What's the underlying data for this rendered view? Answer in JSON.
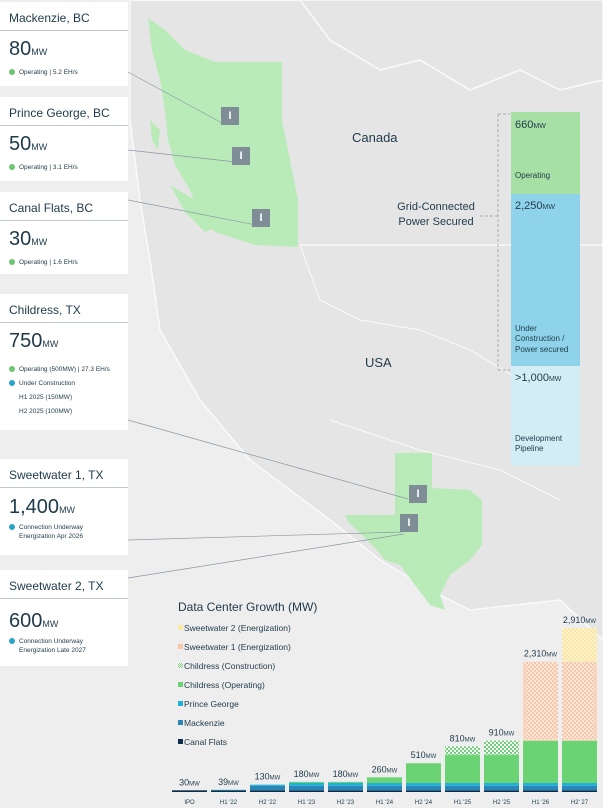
{
  "sites": [
    {
      "name": "Mackenzie, BC",
      "value": "80",
      "unit": "MW",
      "notes": [
        {
          "text": "Operating | 5.2 EH/s",
          "dot": "#6cc56f"
        }
      ]
    },
    {
      "name": "Prince George, BC",
      "value": "50",
      "unit": "MW",
      "notes": [
        {
          "text": "Operating | 3.1 EH/s",
          "dot": "#6cc56f"
        }
      ]
    },
    {
      "name": "Canal Flats, BC",
      "value": "30",
      "unit": "MW",
      "notes": [
        {
          "text": "Operating | 1.6 EH/s",
          "dot": "#6cc56f"
        }
      ]
    },
    {
      "name": "Childress, TX",
      "value": "750",
      "unit": "MW",
      "notes": [
        {
          "text": "Operating (500MW) | 27.3 EH/s",
          "dot": "#6cc56f"
        },
        {
          "text": "Under Construction",
          "dot": "#2aa3c9"
        },
        {
          "text": "H1 2025 (150MW)",
          "dot": ""
        },
        {
          "text": "H2 2025 (100MW)",
          "dot": ""
        }
      ]
    },
    {
      "name": "Sweetwater 1, TX",
      "value": "1,400",
      "unit": "MW",
      "notes": [
        {
          "text": "Connection Underway",
          "dot": "#2aa3c9"
        },
        {
          "text": "Energization Apr 2026",
          "dot": ""
        }
      ]
    },
    {
      "name": "Sweetwater 2, TX",
      "value": "600",
      "unit": "MW",
      "notes": [
        {
          "text": "Connection Underway",
          "dot": "#2aa3c9"
        },
        {
          "text": "Energization Late 2027",
          "dot": ""
        }
      ]
    }
  ],
  "map": {
    "canada_label": "Canada",
    "usa_label": "USA",
    "marker_glyph": "I"
  },
  "power": {
    "label_line1": "Grid-Connected",
    "label_line2": "Power Secured",
    "segments": [
      {
        "value": "660",
        "unit": "MW",
        "lines": [
          "Operating"
        ],
        "color": "#a7e0a4"
      },
      {
        "value": "2,250",
        "unit": "MW",
        "lines": [
          "Under",
          "Construction /",
          "Power secured"
        ],
        "color": "#8fd3ea"
      },
      {
        "value": ">1,000",
        "unit": "MW",
        "lines": [
          "Development",
          "Pipeline"
        ],
        "color": "#d3edf5"
      }
    ]
  },
  "chart_data": {
    "type": "bar",
    "title": "Data Center Growth (MW)",
    "categories": [
      "IPO",
      "H1 '22",
      "H2 '22",
      "H1 '23",
      "H2 '23",
      "H1 '24",
      "H2 '24",
      "H1 '25",
      "H2 '25",
      "H1 '26",
      "H2' 27"
    ],
    "totals": [
      "30",
      "39",
      "130",
      "180",
      "180",
      "260",
      "510",
      "810",
      "910",
      "2,310",
      "2,910"
    ],
    "total_unit": "MW",
    "ylim": [
      0,
      3050
    ],
    "series": [
      {
        "name": "Canal Flats",
        "values": [
          30,
          30,
          30,
          30,
          30,
          30,
          30,
          30,
          30,
          30,
          30
        ],
        "color": "#0d2e4a",
        "pattern": "solid"
      },
      {
        "name": "Mackenzie",
        "values": [
          0,
          0,
          80,
          80,
          80,
          80,
          80,
          80,
          80,
          80,
          80
        ],
        "color": "#2b86b8",
        "pattern": "solid"
      },
      {
        "name": "Prince George",
        "values": [
          0,
          9,
          20,
          50,
          50,
          50,
          50,
          50,
          50,
          50,
          50
        ],
        "color": "#1fb0d8",
        "pattern": "solid"
      },
      {
        "name": "Childress (Operating)",
        "values": [
          0,
          0,
          0,
          20,
          20,
          100,
          350,
          500,
          500,
          750,
          750
        ],
        "color": "#6ad474",
        "pattern": "solid"
      },
      {
        "name": "Childress (Construction)",
        "values": [
          0,
          0,
          0,
          0,
          0,
          0,
          0,
          150,
          250,
          0,
          0
        ],
        "color": "#6ad474",
        "pattern": "check"
      },
      {
        "name": "Sweetwater 1 (Energization)",
        "values": [
          0,
          0,
          0,
          0,
          0,
          0,
          0,
          0,
          0,
          1400,
          1400
        ],
        "color": "#f6c7a8",
        "pattern": "dots"
      },
      {
        "name": "Sweetwater 2 (Energization)",
        "values": [
          0,
          0,
          0,
          0,
          0,
          0,
          0,
          0,
          0,
          0,
          600
        ],
        "color": "#fbe7a6",
        "pattern": "dots"
      }
    ]
  }
}
